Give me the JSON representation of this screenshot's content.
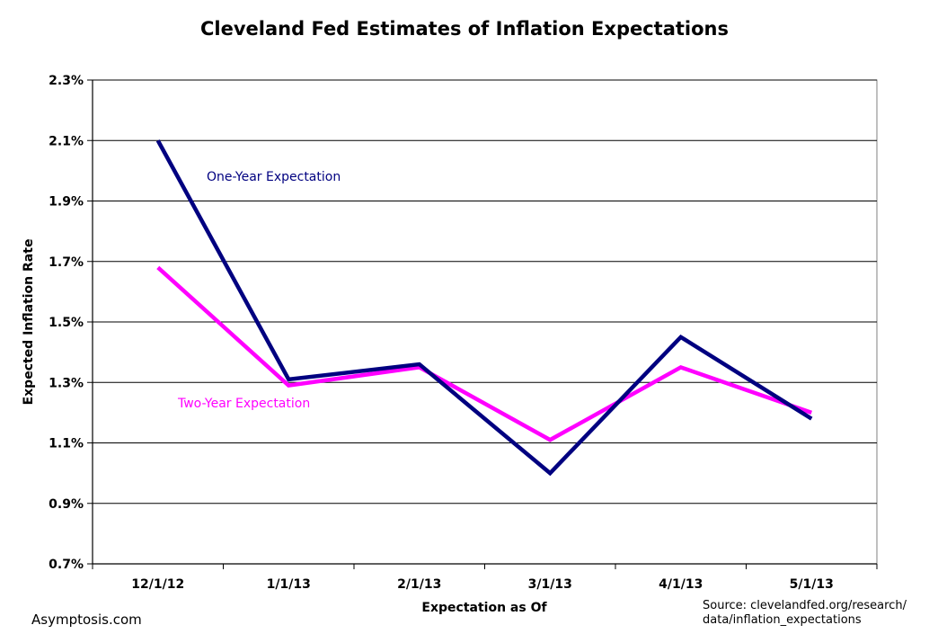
{
  "chart_data": {
    "type": "line",
    "title": "Cleveland Fed Estimates of Inflation Expectations",
    "xlabel": "Expectation as Of",
    "ylabel": "Expected Inflation Rate",
    "categories": [
      "12/1/12",
      "1/1/13",
      "2/1/13",
      "3/1/13",
      "4/1/13",
      "5/1/13"
    ],
    "ylim": [
      0.7,
      2.3
    ],
    "yticks": [
      "0.7%",
      "0.9%",
      "1.1%",
      "1.3%",
      "1.5%",
      "1.7%",
      "1.9%",
      "2.1%",
      "2.3%"
    ],
    "ytick_values": [
      0.7,
      0.9,
      1.1,
      1.3,
      1.5,
      1.7,
      1.9,
      2.1,
      2.3
    ],
    "grid": "horizontal",
    "series": [
      {
        "name": "One-Year Expectation",
        "color": "#000080",
        "values": [
          2.1,
          1.31,
          1.36,
          1.0,
          1.45,
          1.18
        ]
      },
      {
        "name": "Two-Year Expectation",
        "color": "#ff00ff",
        "values": [
          1.68,
          1.29,
          1.35,
          1.11,
          1.35,
          1.2
        ]
      }
    ]
  },
  "watermark": "Asymptosis.com",
  "source_line1": "Source: clevelandfed.org/research/",
  "source_line2": "data/inflation_expectations"
}
